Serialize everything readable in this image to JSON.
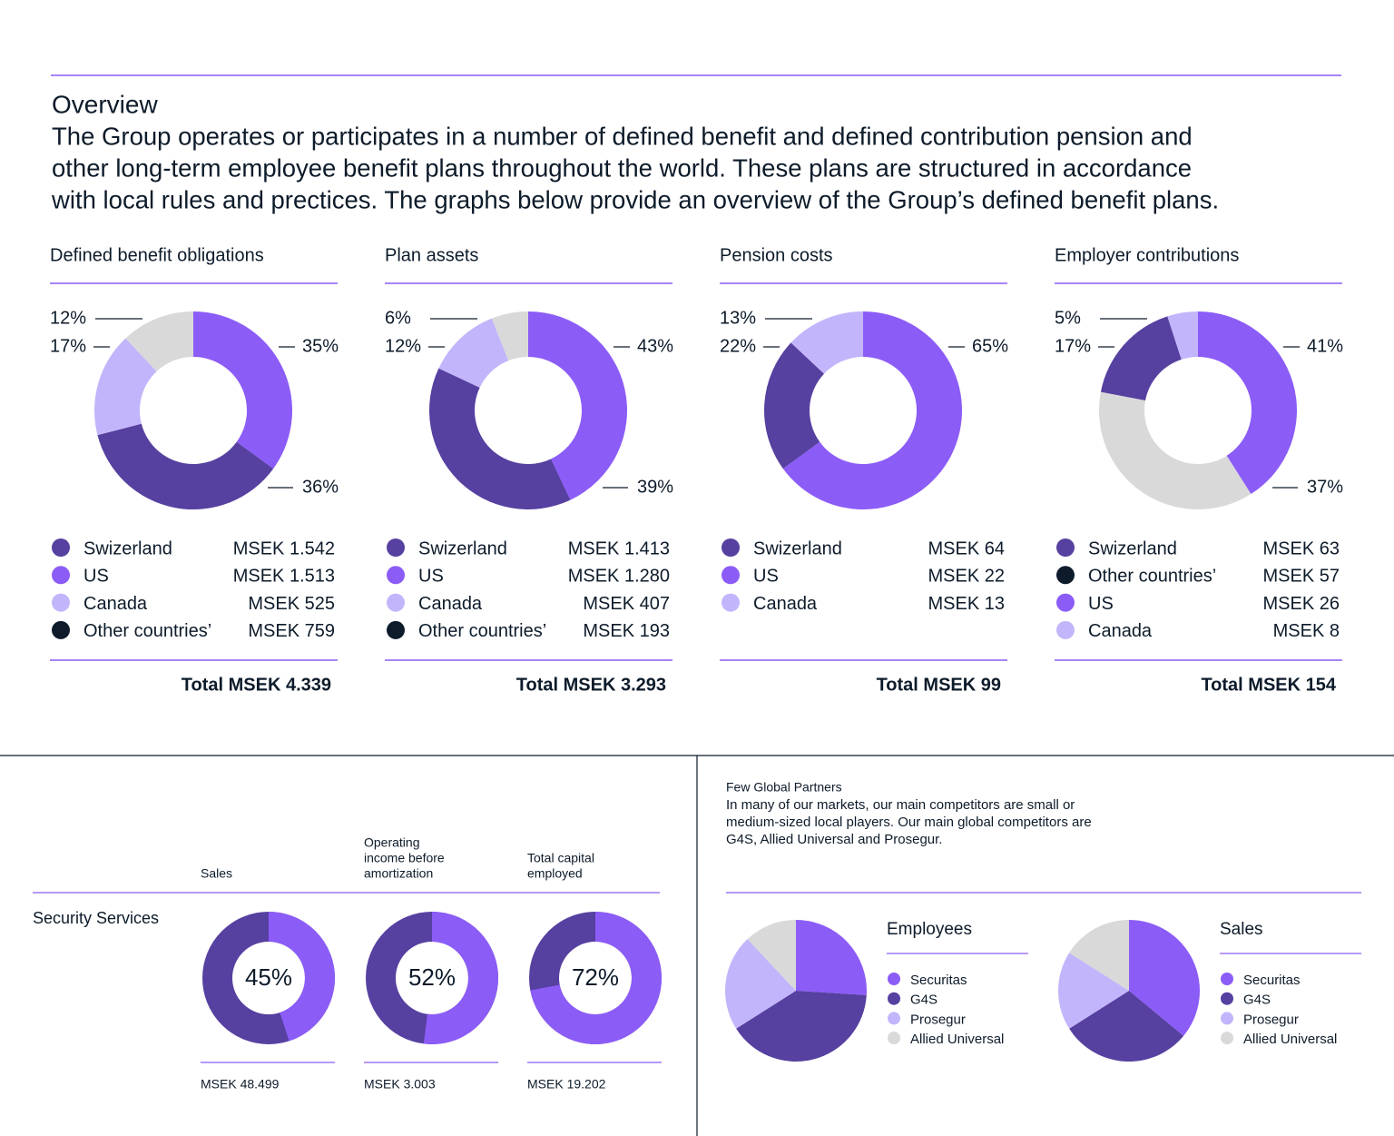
{
  "header": {
    "title": "Overview",
    "lines": [
      "The Group operates or participates in a number of defined benefit and defined contribution pension and",
      "other long-term employee benefit plans throughout the world. These plans are structured in accordance",
      "with local rules and prectices. The graphs below provide an overview of the Group’s defined benefit plans."
    ]
  },
  "chart_data": [
    {
      "type": "donut",
      "title": "Defined benefit obligations",
      "values": [
        35,
        36,
        17,
        12
      ],
      "value_labels": [
        "35%",
        "36%",
        "17%",
        "12%"
      ],
      "colors": [
        "#8c5cf7",
        "#5640a0",
        "#c3b5fb",
        "#d9d9d9"
      ],
      "legend": [
        {
          "name": "Swizerland",
          "amount": "MSEK 1.542",
          "color": "#5640a0"
        },
        {
          "name": "US",
          "amount": "MSEK 1.513",
          "color": "#8c5cf7"
        },
        {
          "name": "Canada",
          "amount": "MSEK 525",
          "color": "#c3b5fb"
        },
        {
          "name": "Other countries’",
          "amount": "MSEK 759",
          "color": "#0d1b2a"
        }
      ],
      "total": "Total MSEK 4.339"
    },
    {
      "type": "donut",
      "title": "Plan assets",
      "values": [
        43,
        39,
        12,
        6
      ],
      "value_labels": [
        "43%",
        "39%",
        "12%",
        "6%"
      ],
      "colors": [
        "#8c5cf7",
        "#5640a0",
        "#c3b5fb",
        "#d9d9d9"
      ],
      "legend": [
        {
          "name": "Swizerland",
          "amount": "MSEK 1.413",
          "color": "#5640a0"
        },
        {
          "name": "US",
          "amount": "MSEK 1.280",
          "color": "#8c5cf7"
        },
        {
          "name": "Canada",
          "amount": "MSEK 407",
          "color": "#c3b5fb"
        },
        {
          "name": "Other countries’",
          "amount": "MSEK 193",
          "color": "#0d1b2a"
        }
      ],
      "total": "Total MSEK 3.293"
    },
    {
      "type": "donut",
      "title": "Pension costs",
      "values": [
        65,
        22,
        13
      ],
      "value_labels": [
        "65%",
        "22%",
        "13%"
      ],
      "colors": [
        "#8c5cf7",
        "#5640a0",
        "#c3b5fb"
      ],
      "legend": [
        {
          "name": "Swizerland",
          "amount": "MSEK 64",
          "color": "#5640a0"
        },
        {
          "name": "US",
          "amount": "MSEK 22",
          "color": "#8c5cf7"
        },
        {
          "name": "Canada",
          "amount": "MSEK 13",
          "color": "#c3b5fb"
        }
      ],
      "total": "Total MSEK 99"
    },
    {
      "type": "donut",
      "title": "Employer contributions",
      "values": [
        41,
        37,
        17,
        5
      ],
      "value_labels": [
        "41%",
        "37%",
        "17%",
        "5%"
      ],
      "colors": [
        "#8c5cf7",
        "#d9d9d9",
        "#5640a0",
        "#c3b5fb"
      ],
      "legend": [
        {
          "name": "Swizerland",
          "amount": "MSEK 63",
          "color": "#5640a0"
        },
        {
          "name": "Other countries’",
          "amount": "MSEK 57",
          "color": "#0d1b2a"
        },
        {
          "name": "US",
          "amount": "MSEK 26",
          "color": "#8c5cf7"
        },
        {
          "name": "Canada",
          "amount": "MSEK 8",
          "color": "#c3b5fb"
        }
      ],
      "total": "Total MSEK 154"
    },
    {
      "type": "ring",
      "title_lines": [
        "Sales"
      ],
      "value": 45,
      "value_label": "45%",
      "color": "#8c5cf7",
      "track_color": "#5640a0",
      "amount": "MSEK 48.499"
    },
    {
      "type": "ring",
      "title_lines": [
        "Operating",
        "income before",
        "amortization"
      ],
      "value": 52,
      "value_label": "52%",
      "color": "#8c5cf7",
      "track_color": "#5640a0",
      "amount": "MSEK 3.003"
    },
    {
      "type": "ring",
      "title_lines": [
        "Total capital",
        "employed"
      ],
      "value": 72,
      "value_label": "72%",
      "color": "#8c5cf7",
      "track_color": "#5640a0",
      "amount": "MSEK 19.202"
    },
    {
      "type": "pie",
      "title": "Employees",
      "categories": [
        "Securitas",
        "G4S",
        "Prosegur",
        "Allied Universal"
      ],
      "values": [
        26,
        40,
        22,
        12
      ],
      "colors": [
        "#8c5cf7",
        "#5640a0",
        "#c3b5fb",
        "#d9d9d9"
      ]
    },
    {
      "type": "pie",
      "title": "Sales",
      "categories": [
        "Securitas",
        "G4S",
        "Prosegur",
        "Allied Universal"
      ],
      "values": [
        36,
        30,
        18,
        16
      ],
      "colors": [
        "#8c5cf7",
        "#5640a0",
        "#c3b5fb",
        "#d9d9d9"
      ]
    }
  ],
  "security": {
    "row_label": "Security Services"
  },
  "partners": {
    "title": "Few Global Partners",
    "lines": [
      "In many of our markets, our main competitors are small or",
      "medium-sized local players. Our main global competitors are",
      "G4S, Allied Universal and Prosegur."
    ]
  }
}
